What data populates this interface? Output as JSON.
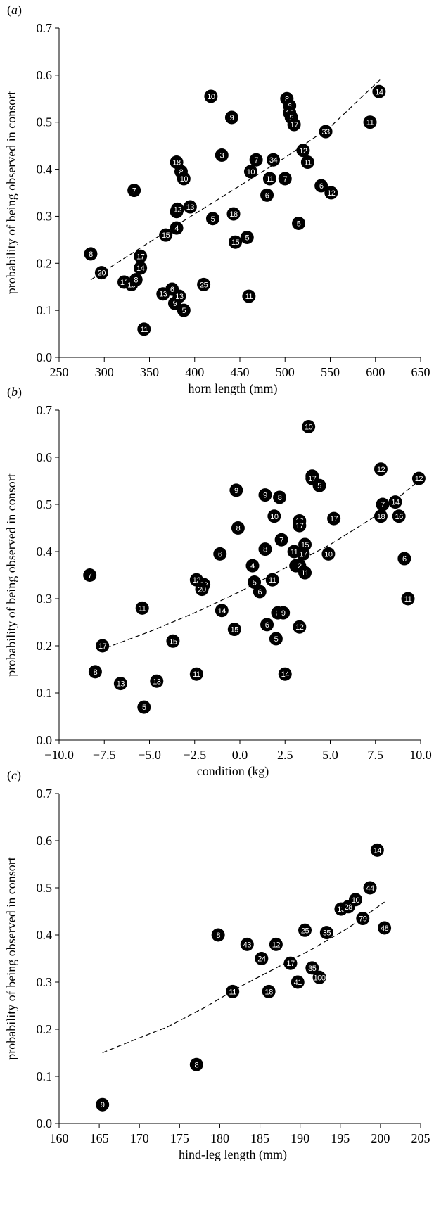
{
  "chart_data": [
    {
      "type": "scatter",
      "panel": "a",
      "xlabel": "horn length (mm)",
      "ylabel": "probability of being observed in consort",
      "xlim": [
        250,
        650
      ],
      "ylim": [
        0,
        0.7
      ],
      "xticks": [
        "250",
        "300",
        "350",
        "400",
        "450",
        "500",
        "550",
        "600",
        "650"
      ],
      "yticks": [
        "0.0",
        "0.1",
        "0.2",
        "0.3",
        "0.4",
        "0.5",
        "0.6",
        "0.7"
      ],
      "trend": [
        [
          285,
          0.165
        ],
        [
          350,
          0.245
        ],
        [
          400,
          0.305
        ],
        [
          450,
          0.365
        ],
        [
          500,
          0.425
        ],
        [
          550,
          0.49
        ],
        [
          605,
          0.59
        ]
      ],
      "points": [
        {
          "x": 285,
          "y": 0.22,
          "label": "8"
        },
        {
          "x": 297,
          "y": 0.18,
          "label": "20"
        },
        {
          "x": 322,
          "y": 0.16,
          "label": "12"
        },
        {
          "x": 330,
          "y": 0.155,
          "label": "15"
        },
        {
          "x": 335,
          "y": 0.165,
          "label": "8"
        },
        {
          "x": 340,
          "y": 0.215,
          "label": "17"
        },
        {
          "x": 340,
          "y": 0.19,
          "label": "14"
        },
        {
          "x": 333,
          "y": 0.355,
          "label": "7"
        },
        {
          "x": 344,
          "y": 0.06,
          "label": "11"
        },
        {
          "x": 365,
          "y": 0.135,
          "label": "13"
        },
        {
          "x": 368,
          "y": 0.26,
          "label": "15"
        },
        {
          "x": 375,
          "y": 0.145,
          "label": "6"
        },
        {
          "x": 378,
          "y": 0.115,
          "label": "9"
        },
        {
          "x": 380,
          "y": 0.275,
          "label": "4"
        },
        {
          "x": 380,
          "y": 0.31,
          "label": "14"
        },
        {
          "x": 381,
          "y": 0.315,
          "label": "12"
        },
        {
          "x": 388,
          "y": 0.1,
          "label": "5"
        },
        {
          "x": 383,
          "y": 0.13,
          "label": "13"
        },
        {
          "x": 380,
          "y": 0.415,
          "label": "18"
        },
        {
          "x": 385,
          "y": 0.395,
          "label": "8"
        },
        {
          "x": 388,
          "y": 0.38,
          "label": "10"
        },
        {
          "x": 395,
          "y": 0.32,
          "label": "13"
        },
        {
          "x": 410,
          "y": 0.155,
          "label": "25"
        },
        {
          "x": 420,
          "y": 0.295,
          "label": "5"
        },
        {
          "x": 418,
          "y": 0.555,
          "label": "10"
        },
        {
          "x": 430,
          "y": 0.43,
          "label": "3"
        },
        {
          "x": 441,
          "y": 0.51,
          "label": "9"
        },
        {
          "x": 443,
          "y": 0.305,
          "label": "18"
        },
        {
          "x": 445,
          "y": 0.245,
          "label": "15"
        },
        {
          "x": 458,
          "y": 0.255,
          "label": "5"
        },
        {
          "x": 460,
          "y": 0.13,
          "label": "11"
        },
        {
          "x": 462,
          "y": 0.395,
          "label": "10"
        },
        {
          "x": 468,
          "y": 0.42,
          "label": "7"
        },
        {
          "x": 480,
          "y": 0.345,
          "label": "6"
        },
        {
          "x": 483,
          "y": 0.38,
          "label": "11"
        },
        {
          "x": 487,
          "y": 0.42,
          "label": "34"
        },
        {
          "x": 500,
          "y": 0.38,
          "label": "7"
        },
        {
          "x": 502,
          "y": 0.55,
          "label": "8"
        },
        {
          "x": 505,
          "y": 0.535,
          "label": "6"
        },
        {
          "x": 505,
          "y": 0.52,
          "label": "12"
        },
        {
          "x": 507,
          "y": 0.51,
          "label": "5"
        },
        {
          "x": 510,
          "y": 0.495,
          "label": "17"
        },
        {
          "x": 515,
          "y": 0.285,
          "label": "5"
        },
        {
          "x": 520,
          "y": 0.44,
          "label": "12"
        },
        {
          "x": 525,
          "y": 0.415,
          "label": "11"
        },
        {
          "x": 540,
          "y": 0.365,
          "label": "6"
        },
        {
          "x": 545,
          "y": 0.48,
          "label": "33"
        },
        {
          "x": 551,
          "y": 0.35,
          "label": "12"
        },
        {
          "x": 594,
          "y": 0.5,
          "label": "11"
        },
        {
          "x": 604,
          "y": 0.565,
          "label": "14"
        }
      ]
    },
    {
      "type": "scatter",
      "panel": "b",
      "xlabel": "condition (kg)",
      "ylabel": "probability of being observed in consort",
      "xlim": [
        -10,
        10
      ],
      "ylim": [
        0,
        0.7
      ],
      "xticks": [
        "−10.0",
        "−7.5",
        "−5.0",
        "−2.5",
        "0.0",
        "2.5",
        "5.0",
        "7.5",
        "10.0"
      ],
      "yticks": [
        "0.0",
        "0.1",
        "0.2",
        "0.3",
        "0.4",
        "0.5",
        "0.6",
        "0.7"
      ],
      "trend": [
        [
          -7.8,
          0.19
        ],
        [
          -5,
          0.23
        ],
        [
          -2.5,
          0.27
        ],
        [
          0,
          0.315
        ],
        [
          2.5,
          0.365
        ],
        [
          5,
          0.415
        ],
        [
          7.5,
          0.475
        ],
        [
          9.9,
          0.55
        ]
      ],
      "points": [
        {
          "x": -8.3,
          "y": 0.35,
          "label": "7"
        },
        {
          "x": -7.6,
          "y": 0.2,
          "label": "17"
        },
        {
          "x": -8.0,
          "y": 0.145,
          "label": "8"
        },
        {
          "x": -6.6,
          "y": 0.12,
          "label": "13"
        },
        {
          "x": -5.4,
          "y": 0.28,
          "label": "11"
        },
        {
          "x": -5.3,
          "y": 0.07,
          "label": "5"
        },
        {
          "x": -4.6,
          "y": 0.125,
          "label": "13"
        },
        {
          "x": -3.7,
          "y": 0.21,
          "label": "15"
        },
        {
          "x": -2.4,
          "y": 0.14,
          "label": "11"
        },
        {
          "x": -2.4,
          "y": 0.34,
          "label": "12"
        },
        {
          "x": -2.0,
          "y": 0.33,
          "label": "23"
        },
        {
          "x": -2.1,
          "y": 0.32,
          "label": "20"
        },
        {
          "x": -1.0,
          "y": 0.275,
          "label": "14"
        },
        {
          "x": -1.1,
          "y": 0.395,
          "label": "6"
        },
        {
          "x": -0.2,
          "y": 0.53,
          "label": "9"
        },
        {
          "x": -0.1,
          "y": 0.45,
          "label": "8"
        },
        {
          "x": -0.3,
          "y": 0.235,
          "label": "15"
        },
        {
          "x": 0.7,
          "y": 0.37,
          "label": "4"
        },
        {
          "x": 0.8,
          "y": 0.335,
          "label": "5"
        },
        {
          "x": 1.1,
          "y": 0.315,
          "label": "6"
        },
        {
          "x": 1.4,
          "y": 0.405,
          "label": "8"
        },
        {
          "x": 1.4,
          "y": 0.52,
          "label": "9"
        },
        {
          "x": 1.5,
          "y": 0.245,
          "label": "6"
        },
        {
          "x": 1.8,
          "y": 0.34,
          "label": "11"
        },
        {
          "x": 1.9,
          "y": 0.475,
          "label": "10"
        },
        {
          "x": 2.0,
          "y": 0.215,
          "label": "5"
        },
        {
          "x": 2.1,
          "y": 0.27,
          "label": "8"
        },
        {
          "x": 2.4,
          "y": 0.27,
          "label": "9"
        },
        {
          "x": 2.2,
          "y": 0.515,
          "label": "8"
        },
        {
          "x": 2.3,
          "y": 0.425,
          "label": "7"
        },
        {
          "x": 2.5,
          "y": 0.14,
          "label": "14"
        },
        {
          "x": 3.0,
          "y": 0.4,
          "label": "11"
        },
        {
          "x": 3.1,
          "y": 0.37,
          "label": "18"
        },
        {
          "x": 3.3,
          "y": 0.37,
          "label": "2"
        },
        {
          "x": 3.3,
          "y": 0.24,
          "label": "12"
        },
        {
          "x": 3.3,
          "y": 0.465,
          "label": "16"
        },
        {
          "x": 3.3,
          "y": 0.455,
          "label": "17"
        },
        {
          "x": 3.5,
          "y": 0.395,
          "label": "17"
        },
        {
          "x": 3.6,
          "y": 0.415,
          "label": "15"
        },
        {
          "x": 3.6,
          "y": 0.355,
          "label": "11"
        },
        {
          "x": 3.8,
          "y": 0.665,
          "label": "10"
        },
        {
          "x": 4.0,
          "y": 0.56,
          "label": "8"
        },
        {
          "x": 4.0,
          "y": 0.555,
          "label": "17"
        },
        {
          "x": 4.4,
          "y": 0.54,
          "label": "5"
        },
        {
          "x": 4.9,
          "y": 0.395,
          "label": "10"
        },
        {
          "x": 5.2,
          "y": 0.47,
          "label": "17"
        },
        {
          "x": 7.8,
          "y": 0.575,
          "label": "12"
        },
        {
          "x": 7.9,
          "y": 0.5,
          "label": "7"
        },
        {
          "x": 7.8,
          "y": 0.475,
          "label": "18"
        },
        {
          "x": 8.6,
          "y": 0.505,
          "label": "14"
        },
        {
          "x": 8.8,
          "y": 0.475,
          "label": "16"
        },
        {
          "x": 9.1,
          "y": 0.385,
          "label": "6"
        },
        {
          "x": 9.3,
          "y": 0.3,
          "label": "11"
        },
        {
          "x": 9.9,
          "y": 0.555,
          "label": "12"
        }
      ]
    },
    {
      "type": "scatter",
      "panel": "c",
      "xlabel": "hind-leg length (mm)",
      "ylabel": "probability of being observed in consort",
      "xlim": [
        155,
        205
      ],
      "ylim": [
        0,
        0.7
      ],
      "xticks": [
        "160",
        "165",
        "170",
        "175",
        "180",
        "185",
        "190",
        "195",
        "200",
        "205"
      ],
      "yticks": [
        "0.0",
        "0.1",
        "0.2",
        "0.3",
        "0.4",
        "0.5",
        "0.6",
        "0.7"
      ],
      "trend": [
        [
          161,
          0.15
        ],
        [
          165,
          0.175
        ],
        [
          170,
          0.205
        ],
        [
          175,
          0.245
        ],
        [
          180,
          0.29
        ],
        [
          185,
          0.33
        ],
        [
          190,
          0.37
        ],
        [
          195,
          0.415
        ],
        [
          200,
          0.47
        ]
      ],
      "points": [
        {
          "x": 161,
          "y": 0.04,
          "label": "9"
        },
        {
          "x": 174,
          "y": 0.125,
          "label": "8"
        },
        {
          "x": 177,
          "y": 0.4,
          "label": "8"
        },
        {
          "x": 179,
          "y": 0.28,
          "label": "11"
        },
        {
          "x": 181,
          "y": 0.38,
          "label": "43"
        },
        {
          "x": 183,
          "y": 0.35,
          "label": "24"
        },
        {
          "x": 184,
          "y": 0.28,
          "label": "18"
        },
        {
          "x": 185,
          "y": 0.38,
          "label": "12"
        },
        {
          "x": 187,
          "y": 0.34,
          "label": "17"
        },
        {
          "x": 188,
          "y": 0.3,
          "label": "41"
        },
        {
          "x": 189,
          "y": 0.41,
          "label": "25"
        },
        {
          "x": 190,
          "y": 0.33,
          "label": "35"
        },
        {
          "x": 191,
          "y": 0.31,
          "label": "100"
        },
        {
          "x": 192,
          "y": 0.405,
          "label": "35"
        },
        {
          "x": 194,
          "y": 0.455,
          "label": "13"
        },
        {
          "x": 195,
          "y": 0.46,
          "label": "28"
        },
        {
          "x": 196,
          "y": 0.475,
          "label": "10"
        },
        {
          "x": 197,
          "y": 0.435,
          "label": "79"
        },
        {
          "x": 198,
          "y": 0.5,
          "label": "44"
        },
        {
          "x": 199,
          "y": 0.58,
          "label": "14"
        },
        {
          "x": 200,
          "y": 0.415,
          "label": "48"
        }
      ]
    }
  ]
}
